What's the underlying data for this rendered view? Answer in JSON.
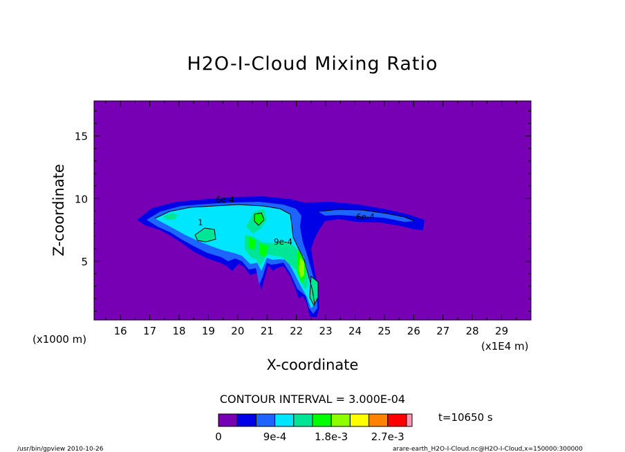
{
  "chart_data": {
    "type": "contour",
    "title": "H2O-I-Cloud Mixing Ratio",
    "xlabel": "X-coordinate",
    "ylabel": "Z-coordinate",
    "x_unit_left": "(x1000 m)",
    "x_unit_right": "(x1E4 m)",
    "xlim": [
      15.1,
      30.0
    ],
    "ylim": [
      0.3,
      17.8
    ],
    "x_ticks": [
      "16",
      "17",
      "18",
      "19",
      "20",
      "21",
      "22",
      "23",
      "24",
      "25",
      "26",
      "27",
      "28",
      "29"
    ],
    "y_ticks": [
      "5",
      "10",
      "15"
    ],
    "contour_interval_text": "CONTOUR INTERVAL = 3.000E-04",
    "time_text": "t=10650 s",
    "contour_labels": [
      "6e-4",
      "6e-4",
      "9e-4",
      "1"
    ],
    "colorbar": {
      "colors": [
        "#7800b4",
        "#0000e6",
        "#1e64ff",
        "#00e6ff",
        "#00e696",
        "#00ff00",
        "#8cff00",
        "#ffff00",
        "#ff8200",
        "#ff0000",
        "#ff96b4"
      ],
      "tick_labels": [
        "0",
        "9e-4",
        "1.8e-3",
        "2.7e-3"
      ]
    },
    "footer_left": "/usr/bin/gpview   2010-10-26",
    "footer_right": "arare-earth_H2O-I-Cloud.nc@H2O-I-Cloud,x=150000:300000"
  }
}
